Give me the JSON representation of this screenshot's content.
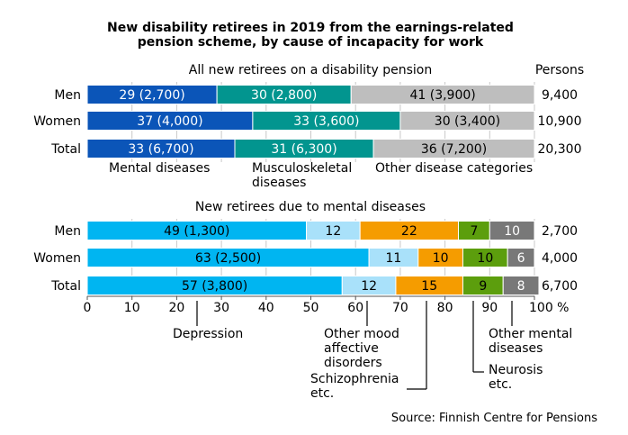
{
  "chart_data": {
    "type": "bar",
    "title_line1": "New disability retirees in 2019 from the earnings-related",
    "title_line2": "pension scheme, by cause of incapacity for work",
    "persons_header": "Persons",
    "source": "Source: Finnish Centre for Pensions",
    "x_ticks": [
      "0",
      "10",
      "20",
      "30",
      "40",
      "50",
      "60",
      "70",
      "80",
      "90",
      "100 %"
    ],
    "xlim": [
      0,
      100
    ],
    "panels": [
      {
        "heading": "All new retirees on a disability pension",
        "series": [
          {
            "name": "Mental diseases",
            "color": "#0b55b8"
          },
          {
            "name": "Musculoskeletal diseases",
            "color": "#02958f"
          },
          {
            "name": "Other disease categories",
            "color": "#bebebe"
          }
        ],
        "rows": [
          {
            "category": "Men",
            "persons": "9,400",
            "values": [
              29,
              30,
              41
            ],
            "labels": [
              "29 (2,700)",
              "30 (2,800)",
              "41 (3,900)"
            ]
          },
          {
            "category": "Women",
            "persons": "10,900",
            "values": [
              37,
              33,
              30
            ],
            "labels": [
              "37 (4,000)",
              "33 (3,600)",
              "30 (3,400)"
            ]
          },
          {
            "category": "Total",
            "persons": "20,300",
            "values": [
              33,
              31,
              36
            ],
            "labels": [
              "33 (6,700)",
              "31 (6,300)",
              "36 (7,200)"
            ]
          }
        ],
        "annotations": [
          {
            "lines": [
              "Mental diseases"
            ]
          },
          {
            "lines": [
              "Musculoskeletal",
              "diseases"
            ]
          },
          {
            "lines": [
              "Other disease categories"
            ]
          }
        ]
      },
      {
        "heading": "New retirees due to mental diseases",
        "series": [
          {
            "name": "Depression",
            "color": "#00b5f1"
          },
          {
            "name": "Other mood affective disorders",
            "color": "#a9e1fa"
          },
          {
            "name": "Schizophrenia etc.",
            "color": "#f59c00"
          },
          {
            "name": "Neurosis etc.",
            "color": "#5c9e0d"
          },
          {
            "name": "Other mental diseases",
            "color": "#787878"
          }
        ],
        "rows": [
          {
            "category": "Men",
            "persons": "2,700",
            "values": [
              49,
              12,
              22,
              7,
              10
            ],
            "labels": [
              "49 (1,300)",
              "12",
              "22",
              "7",
              "10"
            ]
          },
          {
            "category": "Women",
            "persons": "4,000",
            "values": [
              63,
              11,
              10,
              10,
              6
            ],
            "labels": [
              "63 (2,500)",
              "11",
              "10",
              "10",
              "6"
            ]
          },
          {
            "category": "Total",
            "persons": "6,700",
            "values": [
              57,
              12,
              15,
              9,
              8
            ],
            "labels": [
              "57 (3,800)",
              "12",
              "15",
              "9",
              "8"
            ]
          }
        ],
        "annotations": [
          {
            "lines": [
              "Depression"
            ]
          },
          {
            "lines": [
              "Other mood",
              "affective",
              "disorders"
            ]
          },
          {
            "lines": [
              "Schizophrenia",
              "etc."
            ]
          },
          {
            "lines": [
              "Neurosis",
              "etc."
            ]
          },
          {
            "lines": [
              "Other mental",
              "diseases"
            ]
          }
        ]
      }
    ]
  }
}
